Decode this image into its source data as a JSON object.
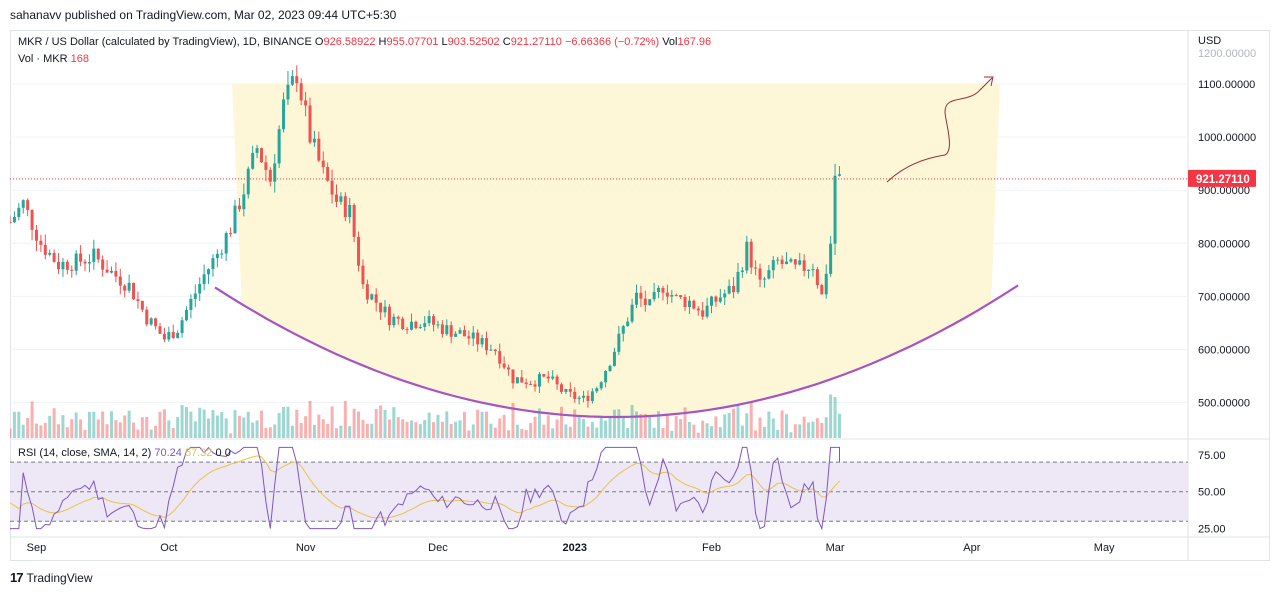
{
  "attribution": "sahanavv published on TradingView.com, Mar 02, 2023 09:44 UTC+5:30",
  "legend": {
    "symbol": "MKR / US Dollar (calculated by TradingView), 1D, BINANCE",
    "o_label": "O",
    "o_value": "926.58922",
    "h_label": "H",
    "h_value": "955.07701",
    "l_label": "L",
    "l_value": "903.52502",
    "c_label": "C",
    "c_value": "921.27110",
    "change": "−6.66366 (−0.72%)",
    "vol_label": "Vol",
    "vol_value": "167.96",
    "vol_series": "Vol · MKR",
    "vol_series_value": "168"
  },
  "rsi_legend": {
    "label": "RSI (14, close, SMA, 14, 2)",
    "rsi_value": "70.24",
    "sma_value": "57.32",
    "extra1": "0",
    "extra2": "0"
  },
  "price_axis": {
    "currency": "USD",
    "last_price": "921.27110",
    "cut_label": "1200.00000",
    "labels": [
      "1100.00000",
      "1000.00000",
      "900.00000",
      "800.00000",
      "700.00000",
      "600.00000",
      "500.00000"
    ]
  },
  "rsi_axis": {
    "labels": [
      "75.00",
      "50.00",
      "25.00"
    ]
  },
  "time_axis": {
    "labels": [
      "Sep",
      "Oct",
      "Nov",
      "Dec",
      "2023",
      "Feb",
      "Mar",
      "Apr",
      "May"
    ]
  },
  "footer": {
    "brand": "TradingView"
  },
  "colors": {
    "up": "#26a69a",
    "down": "#ef5350",
    "cup": "#a653c4",
    "cup_fill": "#fdf7d8",
    "rsi_line": "#7e57c2",
    "rsi_sma": "#e8c547",
    "rsi_band": "#ede7f6",
    "arrow": "#9c2a3c",
    "price_tag": "#f23645"
  },
  "chart_data": {
    "type": "candlestick",
    "title": "MKR / US Dollar (calculated by TradingView), 1D, BINANCE",
    "x_range": [
      "2022-08-26",
      "2023-05-20"
    ],
    "y_range": [
      433,
      1200
    ],
    "last_close": 921.2711,
    "key_levels": {
      "cup_bottom": 500,
      "rim_high": 1150,
      "swing_low_sep": 590,
      "recent_high": 955.07701
    },
    "close_path": [
      {
        "date": "2022-08-26",
        "close": 840
      },
      {
        "date": "2022-08-29",
        "close": 875
      },
      {
        "date": "2022-09-02",
        "close": 800
      },
      {
        "date": "2022-09-06",
        "close": 760
      },
      {
        "date": "2022-09-10",
        "close": 765
      },
      {
        "date": "2022-09-14",
        "close": 775
      },
      {
        "date": "2022-09-18",
        "close": 745
      },
      {
        "date": "2022-09-22",
        "close": 720
      },
      {
        "date": "2022-09-26",
        "close": 660
      },
      {
        "date": "2022-09-30",
        "close": 620
      },
      {
        "date": "2022-10-03",
        "close": 640
      },
      {
        "date": "2022-10-06",
        "close": 690
      },
      {
        "date": "2022-10-09",
        "close": 740
      },
      {
        "date": "2022-10-12",
        "close": 780
      },
      {
        "date": "2022-10-15",
        "close": 830
      },
      {
        "date": "2022-10-18",
        "close": 900
      },
      {
        "date": "2022-10-21",
        "close": 980
      },
      {
        "date": "2022-10-24",
        "close": 920
      },
      {
        "date": "2022-10-27",
        "close": 1060
      },
      {
        "date": "2022-10-30",
        "close": 1120
      },
      {
        "date": "2022-11-02",
        "close": 1000
      },
      {
        "date": "2022-11-05",
        "close": 930
      },
      {
        "date": "2022-11-08",
        "close": 880
      },
      {
        "date": "2022-11-11",
        "close": 860
      },
      {
        "date": "2022-11-14",
        "close": 720
      },
      {
        "date": "2022-11-17",
        "close": 690
      },
      {
        "date": "2022-11-20",
        "close": 660
      },
      {
        "date": "2022-11-24",
        "close": 650
      },
      {
        "date": "2022-11-28",
        "close": 655
      },
      {
        "date": "2022-12-02",
        "close": 640
      },
      {
        "date": "2022-12-06",
        "close": 630
      },
      {
        "date": "2022-12-10",
        "close": 615
      },
      {
        "date": "2022-12-14",
        "close": 600
      },
      {
        "date": "2022-12-18",
        "close": 545
      },
      {
        "date": "2022-12-22",
        "close": 540
      },
      {
        "date": "2022-12-26",
        "close": 545
      },
      {
        "date": "2022-12-30",
        "close": 515
      },
      {
        "date": "2023-01-03",
        "close": 505
      },
      {
        "date": "2023-01-06",
        "close": 530
      },
      {
        "date": "2023-01-09",
        "close": 580
      },
      {
        "date": "2023-01-12",
        "close": 640
      },
      {
        "date": "2023-01-15",
        "close": 700
      },
      {
        "date": "2023-01-18",
        "close": 680
      },
      {
        "date": "2023-01-21",
        "close": 720
      },
      {
        "date": "2023-01-24",
        "close": 695
      },
      {
        "date": "2023-01-27",
        "close": 690
      },
      {
        "date": "2023-01-30",
        "close": 670
      },
      {
        "date": "2023-02-03",
        "close": 700
      },
      {
        "date": "2023-02-06",
        "close": 715
      },
      {
        "date": "2023-02-09",
        "close": 790
      },
      {
        "date": "2023-02-12",
        "close": 720
      },
      {
        "date": "2023-02-16",
        "close": 765
      },
      {
        "date": "2023-02-20",
        "close": 750
      },
      {
        "date": "2023-02-24",
        "close": 760
      },
      {
        "date": "2023-02-26",
        "close": 700
      },
      {
        "date": "2023-02-28",
        "close": 800
      },
      {
        "date": "2023-03-01",
        "close": 928
      },
      {
        "date": "2023-03-02",
        "close": 921.27
      }
    ],
    "rsi": {
      "value": 70.24,
      "sma": 57.32,
      "ylim": [
        20,
        85
      ],
      "bands": [
        30,
        50,
        70
      ]
    }
  }
}
